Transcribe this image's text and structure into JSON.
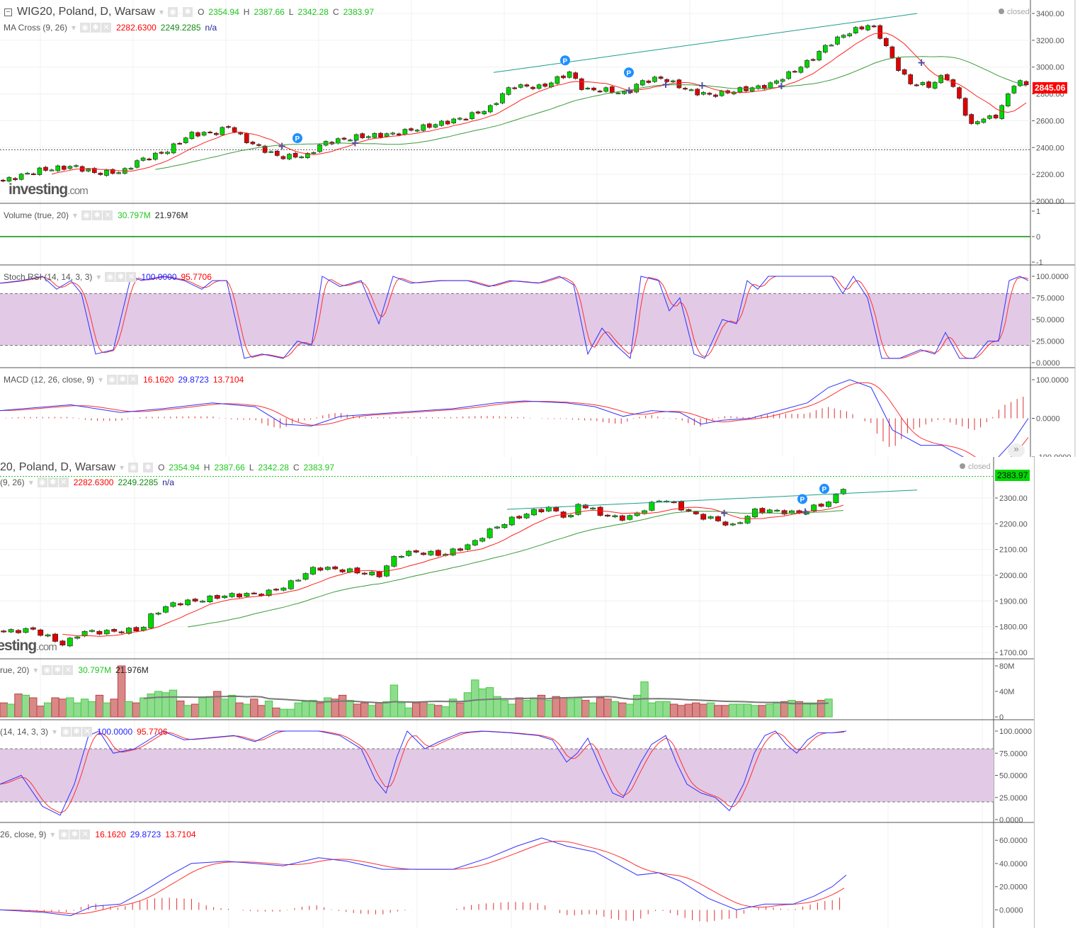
{
  "symbol": {
    "title": "WIG20, Poland, D, Warsaw",
    "title_clipped": "20, Poland, D, Warsaw",
    "o_label": "O",
    "o": "2354.94",
    "h_label": "H",
    "h": "2387.66",
    "l_label": "L",
    "l": "2342.28",
    "c_label": "C",
    "c": "2383.97",
    "status": "closed"
  },
  "ma_cross": {
    "label": "MA Cross (9, 26)",
    "label_clipped": "(9, 26)",
    "v1": "2282.6300",
    "v2": "2249.2285",
    "v3": "n/a"
  },
  "volume": {
    "label": "Volume (true, 20)",
    "label_clipped": "rue, 20)",
    "v1": "30.797M",
    "v2": "21.976M"
  },
  "stoch_rsi": {
    "label": "Stoch RSI (14, 14, 3, 3)",
    "label_clipped": "(14, 14, 3, 3)",
    "k": "100.0000",
    "d": "95.7706"
  },
  "macd": {
    "label": "MACD (12, 26, close, 9)",
    "label_clipped": "26, close, 9)",
    "v1": "16.1620",
    "v2": "29.8723",
    "v3": "13.7104"
  },
  "logo": {
    "text": "investing",
    "suffix": ".com"
  },
  "price_tags": {
    "top": "2845.06",
    "bottom": "2383.97"
  },
  "pattern_marker": "P",
  "colors": {
    "up": "#00d800",
    "down": "#e00000",
    "ma_fast": "#ff2020",
    "ma_slow": "#3a9a3a",
    "stoch_k": "#3030ff",
    "stoch_d": "#ff3030",
    "band": "#e2c9e6",
    "trend": "#1e9c8a"
  },
  "chart_data": [
    {
      "type": "candlestick",
      "name": "top-window",
      "ylim": [
        2000,
        3400
      ],
      "y_ticks": [
        "3400.00",
        "3200.00",
        "3000.00",
        "2800.00",
        "2600.00",
        "2400.00",
        "2200.00",
        "2000.00"
      ],
      "close_path": [
        [
          0,
          2150
        ],
        [
          50,
          2230
        ],
        [
          100,
          2260
        ],
        [
          130,
          2210
        ],
        [
          170,
          2220
        ],
        [
          190,
          2300
        ],
        [
          230,
          2370
        ],
        [
          265,
          2500
        ],
        [
          300,
          2510
        ],
        [
          320,
          2560
        ],
        [
          340,
          2460
        ],
        [
          370,
          2380
        ],
        [
          390,
          2330
        ],
        [
          430,
          2340
        ],
        [
          450,
          2430
        ],
        [
          500,
          2480
        ],
        [
          550,
          2500
        ],
        [
          600,
          2560
        ],
        [
          650,
          2620
        ],
        [
          690,
          2700
        ],
        [
          705,
          2800
        ],
        [
          720,
          2860
        ],
        [
          760,
          2850
        ],
        [
          800,
          2960
        ],
        [
          820,
          2830
        ],
        [
          850,
          2830
        ],
        [
          880,
          2800
        ],
        [
          900,
          2890
        ],
        [
          930,
          2920
        ],
        [
          970,
          2820
        ],
        [
          1000,
          2790
        ],
        [
          1040,
          2830
        ],
        [
          1080,
          2860
        ],
        [
          1110,
          2950
        ],
        [
          1140,
          3050
        ],
        [
          1160,
          3150
        ],
        [
          1190,
          3250
        ],
        [
          1225,
          3320
        ],
        [
          1240,
          3220
        ],
        [
          1260,
          3020
        ],
        [
          1280,
          2880
        ],
        [
          1310,
          2860
        ],
        [
          1330,
          2950
        ],
        [
          1355,
          2720
        ],
        [
          1365,
          2550
        ],
        [
          1380,
          2620
        ],
        [
          1400,
          2620
        ],
        [
          1415,
          2750
        ],
        [
          1430,
          2900
        ],
        [
          1455,
          2845
        ]
      ],
      "volume_ylim": [
        -1,
        1
      ],
      "volume_ticks": [
        "1",
        "0",
        "-1"
      ],
      "stoch_ticks": [
        "100.0000",
        "75.0000",
        "50.0000",
        "25.0000",
        "0.0000"
      ],
      "stoch_k": [
        [
          0,
          92
        ],
        [
          30,
          95
        ],
        [
          60,
          100
        ],
        [
          80,
          85
        ],
        [
          100,
          95
        ],
        [
          115,
          80
        ],
        [
          135,
          10
        ],
        [
          160,
          15
        ],
        [
          185,
          100
        ],
        [
          200,
          95
        ],
        [
          230,
          100
        ],
        [
          260,
          95
        ],
        [
          285,
          85
        ],
        [
          300,
          95
        ],
        [
          320,
          95
        ],
        [
          345,
          5
        ],
        [
          370,
          10
        ],
        [
          400,
          5
        ],
        [
          420,
          25
        ],
        [
          440,
          20
        ],
        [
          455,
          100
        ],
        [
          480,
          88
        ],
        [
          510,
          95
        ],
        [
          535,
          45
        ],
        [
          555,
          100
        ],
        [
          580,
          92
        ],
        [
          620,
          95
        ],
        [
          660,
          95
        ],
        [
          690,
          88
        ],
        [
          720,
          95
        ],
        [
          760,
          92
        ],
        [
          790,
          100
        ],
        [
          810,
          90
        ],
        [
          830,
          10
        ],
        [
          850,
          40
        ],
        [
          870,
          20
        ],
        [
          890,
          5
        ],
        [
          905,
          100
        ],
        [
          930,
          95
        ],
        [
          945,
          60
        ],
        [
          960,
          75
        ],
        [
          980,
          10
        ],
        [
          995,
          5
        ],
        [
          1020,
          50
        ],
        [
          1040,
          45
        ],
        [
          1055,
          95
        ],
        [
          1070,
          85
        ],
        [
          1085,
          100
        ],
        [
          1175,
          100
        ],
        [
          1190,
          80
        ],
        [
          1205,
          100
        ],
        [
          1225,
          75
        ],
        [
          1245,
          5
        ],
        [
          1270,
          5
        ],
        [
          1300,
          15
        ],
        [
          1320,
          10
        ],
        [
          1335,
          35
        ],
        [
          1355,
          5
        ],
        [
          1375,
          5
        ],
        [
          1395,
          25
        ],
        [
          1410,
          25
        ],
        [
          1425,
          95
        ],
        [
          1440,
          100
        ],
        [
          1452,
          95
        ]
      ],
      "macd_ylim": [
        -100,
        100
      ],
      "macd_ticks": [
        "100.0000",
        "0.0000",
        "-100.0000"
      ],
      "macd_line": [
        [
          0,
          20
        ],
        [
          100,
          35
        ],
        [
          170,
          15
        ],
        [
          230,
          25
        ],
        [
          300,
          40
        ],
        [
          360,
          30
        ],
        [
          400,
          -15
        ],
        [
          440,
          -20
        ],
        [
          480,
          5
        ],
        [
          560,
          15
        ],
        [
          640,
          25
        ],
        [
          700,
          40
        ],
        [
          740,
          45
        ],
        [
          800,
          40
        ],
        [
          840,
          30
        ],
        [
          880,
          5
        ],
        [
          920,
          20
        ],
        [
          960,
          15
        ],
        [
          990,
          -15
        ],
        [
          1020,
          -5
        ],
        [
          1060,
          0
        ],
        [
          1100,
          20
        ],
        [
          1140,
          40
        ],
        [
          1170,
          80
        ],
        [
          1200,
          100
        ],
        [
          1230,
          80
        ],
        [
          1260,
          -30
        ],
        [
          1300,
          -70
        ],
        [
          1330,
          -70
        ],
        [
          1360,
          -100
        ],
        [
          1380,
          -130
        ],
        [
          1400,
          -120
        ],
        [
          1430,
          -60
        ],
        [
          1452,
          0
        ]
      ]
    },
    {
      "type": "candlestick",
      "name": "bottom-window",
      "ylim": [
        1700,
        2300
      ],
      "y_ticks": [
        "2300.00",
        "2200.00",
        "2100.00",
        "2000.00",
        "1900.00",
        "1800.00",
        "1700.00"
      ],
      "close_path": [
        [
          0,
          1780
        ],
        [
          40,
          1790
        ],
        [
          85,
          1730
        ],
        [
          110,
          1780
        ],
        [
          150,
          1780
        ],
        [
          195,
          1790
        ],
        [
          210,
          1850
        ],
        [
          240,
          1890
        ],
        [
          270,
          1900
        ],
        [
          310,
          1920
        ],
        [
          370,
          1930
        ],
        [
          400,
          1960
        ],
        [
          440,
          2030
        ],
        [
          480,
          2020
        ],
        [
          530,
          2000
        ],
        [
          555,
          2080
        ],
        [
          580,
          2090
        ],
        [
          620,
          2080
        ],
        [
          660,
          2120
        ],
        [
          690,
          2180
        ],
        [
          720,
          2220
        ],
        [
          750,
          2250
        ],
        [
          770,
          2260
        ],
        [
          800,
          2220
        ],
        [
          810,
          2280
        ],
        [
          850,
          2230
        ],
        [
          880,
          2220
        ],
        [
          900,
          2250
        ],
        [
          930,
          2300
        ],
        [
          950,
          2270
        ],
        [
          980,
          2230
        ],
        [
          1000,
          2220
        ],
        [
          1030,
          2190
        ],
        [
          1060,
          2250
        ],
        [
          1090,
          2250
        ],
        [
          1120,
          2240
        ],
        [
          1140,
          2260
        ],
        [
          1170,
          2290
        ],
        [
          1185,
          2340
        ],
        [
          1195,
          2384
        ]
      ],
      "volume_ylim": [
        0,
        80
      ],
      "volume_ticks": [
        "80M",
        "40M",
        "0"
      ],
      "volume_M": [
        22,
        20,
        36,
        34,
        30,
        17,
        22,
        30,
        28,
        30,
        22,
        28,
        24,
        34,
        22,
        28,
        80,
        24,
        22,
        30,
        36,
        40,
        38,
        42,
        25,
        18,
        20,
        30,
        32,
        40,
        28,
        34,
        22,
        20,
        28,
        18,
        25,
        14,
        12,
        12,
        22,
        24,
        26,
        22,
        30,
        28,
        34,
        26,
        20,
        22,
        18,
        22,
        24,
        50,
        22,
        14,
        22,
        24,
        20,
        18,
        16,
        28,
        22,
        38,
        58,
        44,
        46,
        32,
        26,
        20,
        30,
        26,
        30,
        34,
        26,
        32,
        30,
        28,
        30,
        26,
        22,
        30,
        28,
        24,
        22,
        20,
        34,
        55,
        22,
        24,
        24,
        20,
        18,
        20,
        22,
        20,
        22,
        18,
        18,
        20,
        20,
        20,
        18,
        18,
        20,
        22,
        24,
        26,
        24,
        22,
        22,
        26,
        28
      ],
      "stoch_ticks": [
        "100.0000",
        "75.0000",
        "50.0000",
        "25.0000",
        "0.0000"
      ],
      "stoch_k": [
        [
          0,
          40
        ],
        [
          30,
          50
        ],
        [
          60,
          15
        ],
        [
          85,
          5
        ],
        [
          105,
          40
        ],
        [
          125,
          95
        ],
        [
          140,
          100
        ],
        [
          160,
          75
        ],
        [
          190,
          80
        ],
        [
          210,
          90
        ],
        [
          230,
          100
        ],
        [
          260,
          90
        ],
        [
          290,
          92
        ],
        [
          330,
          95
        ],
        [
          360,
          88
        ],
        [
          390,
          100
        ],
        [
          450,
          100
        ],
        [
          480,
          95
        ],
        [
          510,
          80
        ],
        [
          530,
          45
        ],
        [
          545,
          30
        ],
        [
          560,
          70
        ],
        [
          575,
          100
        ],
        [
          600,
          80
        ],
        [
          620,
          88
        ],
        [
          650,
          98
        ],
        [
          680,
          100
        ],
        [
          720,
          98
        ],
        [
          760,
          95
        ],
        [
          780,
          90
        ],
        [
          800,
          65
        ],
        [
          815,
          75
        ],
        [
          830,
          92
        ],
        [
          850,
          55
        ],
        [
          865,
          30
        ],
        [
          880,
          25
        ],
        [
          905,
          65
        ],
        [
          920,
          85
        ],
        [
          940,
          95
        ],
        [
          955,
          65
        ],
        [
          970,
          40
        ],
        [
          990,
          30
        ],
        [
          1010,
          25
        ],
        [
          1030,
          10
        ],
        [
          1050,
          40
        ],
        [
          1065,
          75
        ],
        [
          1080,
          95
        ],
        [
          1095,
          100
        ],
        [
          1110,
          85
        ],
        [
          1125,
          75
        ],
        [
          1140,
          90
        ],
        [
          1155,
          98
        ],
        [
          1175,
          98
        ],
        [
          1195,
          100
        ]
      ],
      "macd_ylim": [
        -15,
        65
      ],
      "macd_ticks": [
        "60.0000",
        "40.0000",
        "20.0000",
        "0.0000"
      ],
      "macd_line": [
        [
          0,
          0
        ],
        [
          60,
          -2
        ],
        [
          100,
          -5
        ],
        [
          130,
          3
        ],
        [
          170,
          5
        ],
        [
          200,
          15
        ],
        [
          240,
          30
        ],
        [
          270,
          40
        ],
        [
          320,
          42
        ],
        [
          360,
          40
        ],
        [
          400,
          38
        ],
        [
          450,
          45
        ],
        [
          490,
          42
        ],
        [
          540,
          35
        ],
        [
          580,
          35
        ],
        [
          640,
          35
        ],
        [
          690,
          45
        ],
        [
          730,
          55
        ],
        [
          765,
          62
        ],
        [
          800,
          55
        ],
        [
          840,
          50
        ],
        [
          870,
          40
        ],
        [
          900,
          30
        ],
        [
          930,
          32
        ],
        [
          960,
          25
        ],
        [
          1000,
          10
        ],
        [
          1040,
          0
        ],
        [
          1080,
          5
        ],
        [
          1120,
          5
        ],
        [
          1150,
          12
        ],
        [
          1175,
          20
        ],
        [
          1195,
          30
        ]
      ]
    }
  ]
}
